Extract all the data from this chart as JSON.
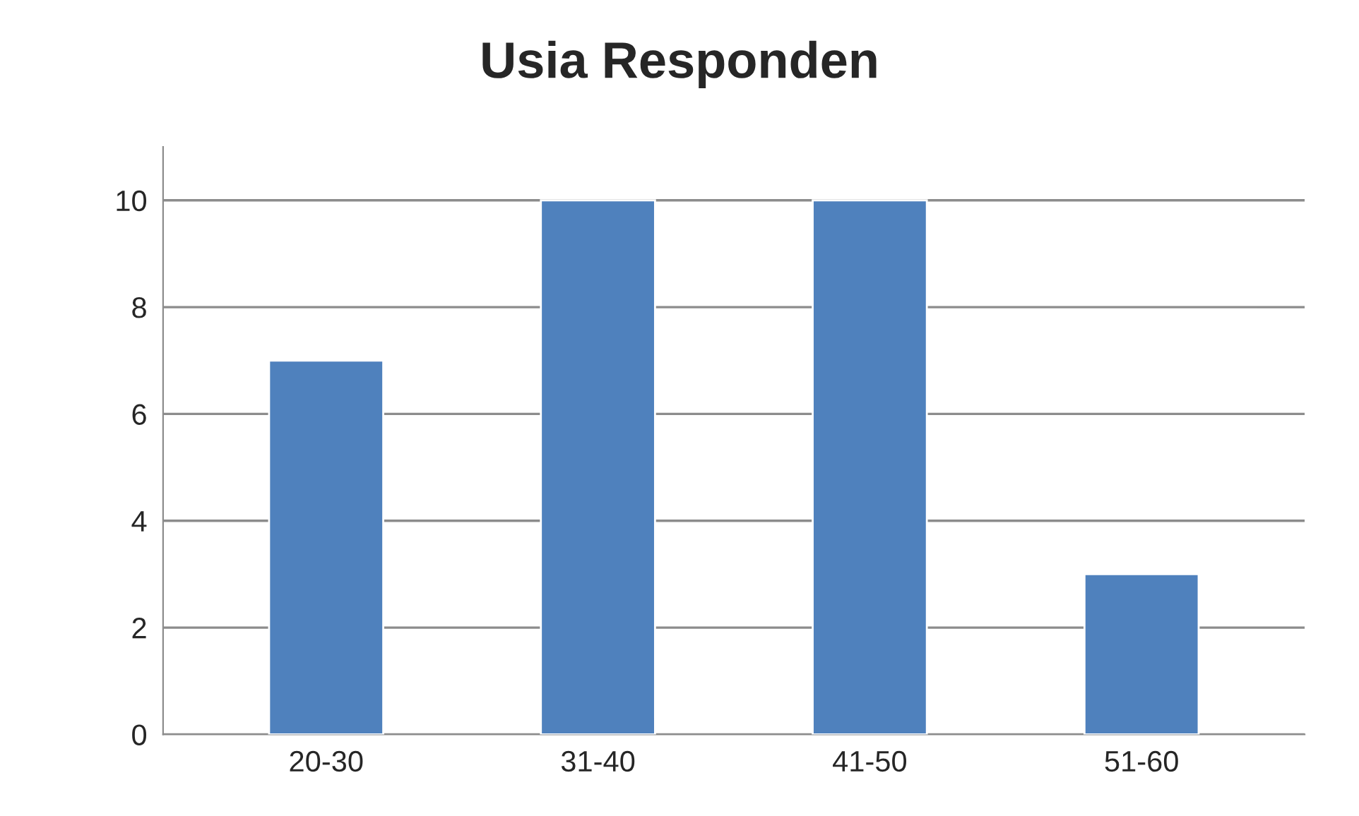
{
  "chart_data": {
    "type": "bar",
    "title": "Usia Responden",
    "categories": [
      "20-30",
      "31-40",
      "41-50",
      "51-60"
    ],
    "values": [
      7,
      10,
      10,
      3
    ],
    "color": "#4f81bd",
    "ylim": [
      0,
      11
    ],
    "yticks": [
      0,
      2,
      4,
      6,
      8,
      10
    ],
    "grid": "y",
    "legend": false
  }
}
